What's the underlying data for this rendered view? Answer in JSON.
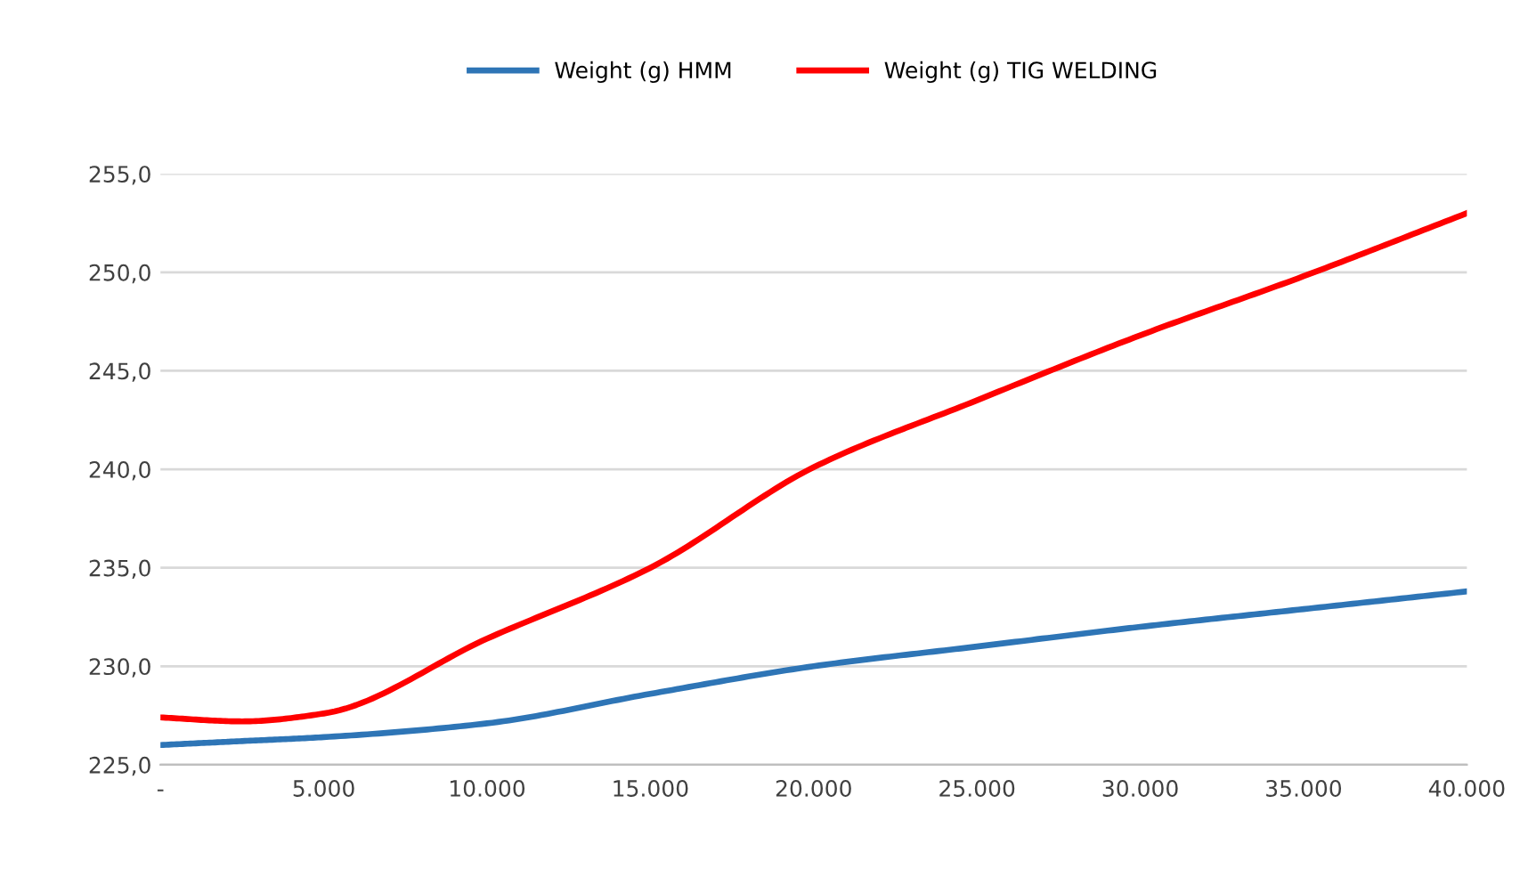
{
  "chart_data": {
    "type": "line",
    "x": [
      0,
      2500,
      5000,
      10000,
      15000,
      20000,
      25000,
      30000,
      35000,
      40000
    ],
    "series": [
      {
        "name": "Weight (g) HMM",
        "color": "#2e75b6",
        "values": [
          226.0,
          226.2,
          226.4,
          227.1,
          228.6,
          230.0,
          231.0,
          232.0,
          232.9,
          233.8
        ]
      },
      {
        "name": "Weight (g) TIG WELDING",
        "color": "#ff0000",
        "values": [
          227.4,
          227.2,
          227.6,
          231.4,
          235.0,
          240.1,
          243.5,
          246.8,
          249.8,
          253.0
        ]
      }
    ],
    "xlim": [
      0,
      40000
    ],
    "xticks": [
      {
        "value": 0,
        "label": "-"
      },
      {
        "value": 5000,
        "label": "5.000"
      },
      {
        "value": 10000,
        "label": "10.000"
      },
      {
        "value": 15000,
        "label": "15.000"
      },
      {
        "value": 20000,
        "label": "20.000"
      },
      {
        "value": 25000,
        "label": "25.000"
      },
      {
        "value": 30000,
        "label": "30.000"
      },
      {
        "value": 35000,
        "label": "35.000"
      },
      {
        "value": 40000,
        "label": "40.000"
      }
    ],
    "ylim": [
      225,
      255
    ],
    "yticks": [
      {
        "value": 225,
        "label": "225,0"
      },
      {
        "value": 230,
        "label": "230,0"
      },
      {
        "value": 235,
        "label": "235,0"
      },
      {
        "value": 240,
        "label": "240,0"
      },
      {
        "value": 245,
        "label": "245,0"
      },
      {
        "value": 250,
        "label": "250,0"
      },
      {
        "value": 255,
        "label": "255,0"
      }
    ],
    "grid": "y",
    "legend": "top",
    "marker": "none",
    "line_style": "solid"
  }
}
